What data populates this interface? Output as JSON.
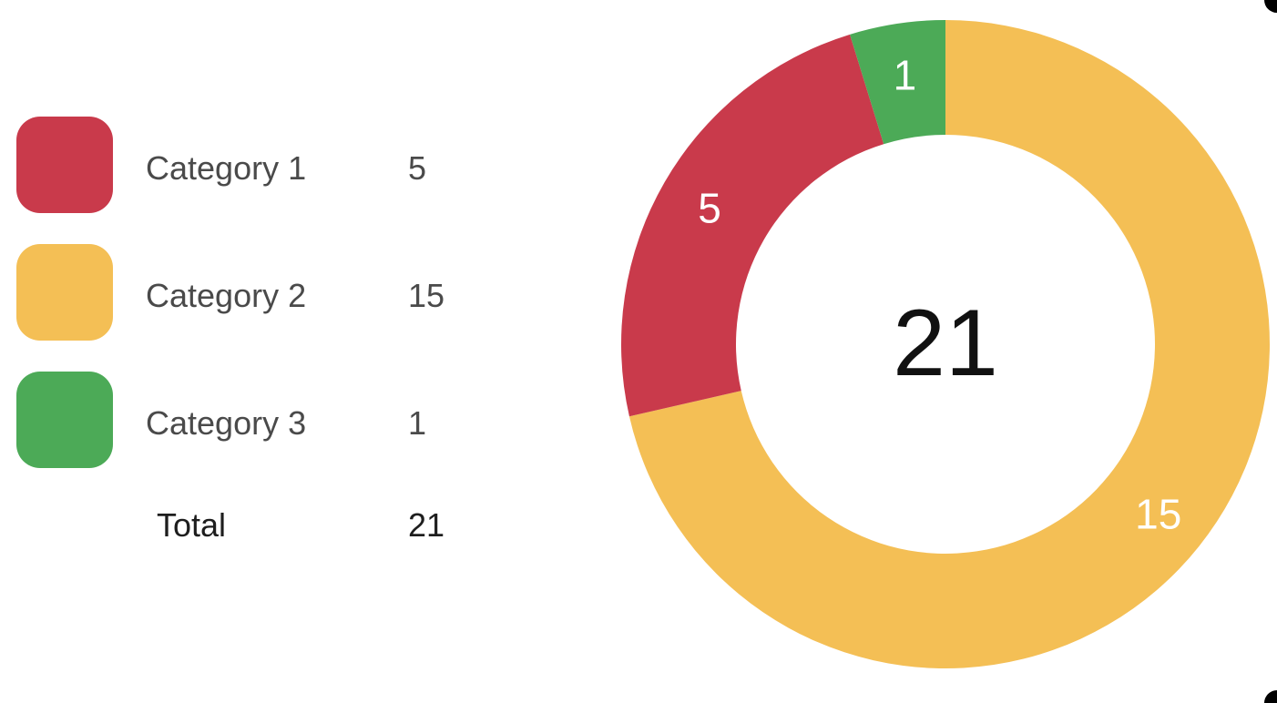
{
  "chart_data": {
    "type": "pie",
    "variant": "donut",
    "categories": [
      "Category 1",
      "Category 2",
      "Category 3"
    ],
    "values": [
      5,
      15,
      1
    ],
    "colors": [
      "#c93a4b",
      "#f4bf55",
      "#4caa57"
    ],
    "total_label": "Total",
    "total": 21,
    "center_text": "21",
    "legend_position": "left"
  }
}
